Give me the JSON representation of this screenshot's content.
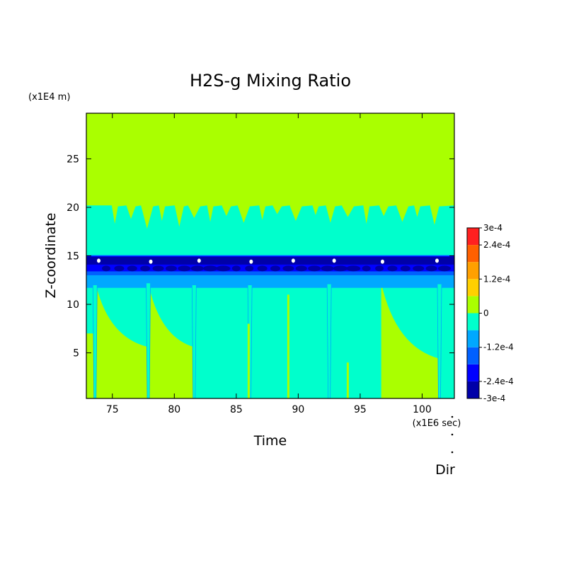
{
  "chart_data": {
    "type": "heatmap",
    "title": "H2S-g Mixing Ratio",
    "xlabel": "Time",
    "ylabel": "Z-coordinate",
    "x_unit": "(x1E6 sec)",
    "y_unit": "(x1E4 m)",
    "footer_label": "Dir",
    "xlim": [
      72.9,
      102.6
    ],
    "ylim": [
      0.3,
      29.7
    ],
    "x_ticks": [
      75,
      80,
      85,
      90,
      95,
      100
    ],
    "y_ticks": [
      5,
      10,
      15,
      20,
      25
    ],
    "grid": false,
    "colorbar": {
      "range": [
        -0.0003,
        0.0003
      ],
      "tick_values": [
        0.0003,
        0.00024,
        0.00012,
        0,
        -0.00012,
        -0.00024,
        -0.0003
      ],
      "tick_labels": [
        "3e-4",
        "2.4e-4",
        "1.2e-4",
        "0",
        "-1.2e-4",
        "-2.4e-4",
        "-3e-4"
      ],
      "levels": [
        {
          "from": -0.0003,
          "to": -0.00024,
          "color": "#0000a8"
        },
        {
          "from": -0.00024,
          "to": -0.00018,
          "color": "#0000ff"
        },
        {
          "from": -0.00018,
          "to": -0.00012,
          "color": "#0060ff"
        },
        {
          "from": -0.00012,
          "to": -6e-05,
          "color": "#00a8ff"
        },
        {
          "from": -6e-05,
          "to": 0,
          "color": "#00ffcc"
        },
        {
          "from": 0,
          "to": 6e-05,
          "color": "#aaff00"
        },
        {
          "from": 6e-05,
          "to": 0.00012,
          "color": "#ffd000"
        },
        {
          "from": 0.00012,
          "to": 0.00018,
          "color": "#ffa000"
        },
        {
          "from": 0.00018,
          "to": 0.00024,
          "color": "#ff6000"
        },
        {
          "from": 0.00024,
          "to": 0.0003,
          "color": "#ff2020"
        }
      ]
    },
    "background_color": "#aaff00",
    "field": {
      "upper_boundary": {
        "z_top": 20.2,
        "dips": [
          {
            "t": 75.2,
            "z": 18.3
          },
          {
            "t": 76.5,
            "z": 18.8
          },
          {
            "t": 77.8,
            "z": 17.8
          },
          {
            "t": 79.0,
            "z": 18.6
          },
          {
            "t": 80.4,
            "z": 18.0
          },
          {
            "t": 81.6,
            "z": 18.9
          },
          {
            "t": 82.9,
            "z": 18.5
          },
          {
            "t": 84.2,
            "z": 19.1
          },
          {
            "t": 85.6,
            "z": 18.4
          },
          {
            "t": 87.1,
            "z": 18.7
          },
          {
            "t": 88.3,
            "z": 19.3
          },
          {
            "t": 89.8,
            "z": 18.6
          },
          {
            "t": 91.4,
            "z": 19.2
          },
          {
            "t": 92.6,
            "z": 18.4
          },
          {
            "t": 94.0,
            "z": 19.0
          },
          {
            "t": 95.5,
            "z": 18.3
          },
          {
            "t": 96.9,
            "z": 19.1
          },
          {
            "t": 98.4,
            "z": 18.5
          },
          {
            "t": 99.6,
            "z": 19.0
          },
          {
            "t": 101.0,
            "z": 18.2
          }
        ]
      },
      "dark_band": {
        "z_bottom": 12.4,
        "z_top": 15.0
      },
      "core_band": {
        "z_bottom": 14.1,
        "z_top": 14.9
      },
      "wide_band": {
        "z_bottom": 11.7,
        "z_top": 15.1
      },
      "white_spots": [
        {
          "t": 73.9,
          "z": 14.5
        },
        {
          "t": 78.1,
          "z": 14.4
        },
        {
          "t": 82.0,
          "z": 14.5
        },
        {
          "t": 86.2,
          "z": 14.4
        },
        {
          "t": 89.6,
          "z": 14.5
        },
        {
          "t": 92.9,
          "z": 14.5
        },
        {
          "t": 96.8,
          "z": 14.4
        },
        {
          "t": 101.2,
          "z": 14.5
        }
      ],
      "lower_wedges": [
        {
          "t_start": 73.7,
          "t_end": 77.9,
          "z_left": 11.9,
          "z_right": 5.6,
          "color": "#aaff00"
        },
        {
          "t_start": 77.9,
          "t_end": 81.6,
          "z_left": 12.2,
          "z_right": 5.6,
          "color": "#aaff00"
        },
        {
          "t_start": 96.7,
          "t_end": 101.4,
          "z_left": 12.2,
          "z_right": 4.4,
          "color": "#aaff00"
        }
      ],
      "lower_left_patch": {
        "t_start": 72.9,
        "t_end": 73.7,
        "z_top": 7.0,
        "color": "#aaff00"
      },
      "spikes": [
        {
          "t": 73.6,
          "z_top": 12.0
        },
        {
          "t": 77.9,
          "z_top": 12.2
        },
        {
          "t": 81.6,
          "z_top": 12.0
        },
        {
          "t": 86.1,
          "z_top": 12.0
        },
        {
          "t": 92.5,
          "z_top": 12.1
        },
        {
          "t": 101.4,
          "z_top": 12.1
        }
      ],
      "thin_green_lines": [
        {
          "t": 86.0,
          "z_top": 8.0
        },
        {
          "t": 89.2,
          "z_top": 11.0
        },
        {
          "t": 94.0,
          "z_top": 4.0
        }
      ]
    }
  }
}
